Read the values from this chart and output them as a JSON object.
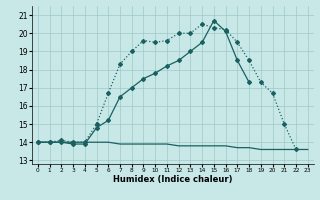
{
  "xlabel": "Humidex (Indice chaleur)",
  "background_color": "#c8e8e8",
  "grid_color": "#a0c8c8",
  "line_color": "#1a6060",
  "xlim": [
    -0.5,
    23.5
  ],
  "ylim": [
    12.8,
    21.5
  ],
  "xticks": [
    0,
    1,
    2,
    3,
    4,
    5,
    6,
    7,
    8,
    9,
    10,
    11,
    12,
    13,
    14,
    15,
    16,
    17,
    18,
    19,
    20,
    21,
    22,
    23
  ],
  "yticks": [
    13,
    14,
    15,
    16,
    17,
    18,
    19,
    20,
    21
  ],
  "line1_x": [
    0,
    1,
    2,
    3,
    4,
    5,
    6,
    7,
    8,
    9,
    10,
    11,
    12,
    13,
    14,
    15,
    16,
    17,
    18,
    19,
    20,
    21,
    22
  ],
  "line1_y": [
    14.0,
    14.0,
    14.1,
    14.0,
    14.0,
    15.0,
    16.7,
    18.3,
    19.0,
    19.6,
    19.5,
    19.6,
    20.0,
    20.0,
    20.5,
    20.3,
    20.2,
    19.5,
    18.5,
    17.3,
    16.7,
    15.0,
    13.6
  ],
  "line2_x": [
    0,
    1,
    2,
    3,
    4,
    5,
    6,
    7,
    8,
    9,
    10,
    11,
    12,
    13,
    14,
    15,
    16,
    17,
    18
  ],
  "line2_y": [
    14.0,
    14.0,
    14.0,
    13.9,
    13.9,
    14.8,
    15.2,
    16.5,
    17.0,
    17.5,
    17.8,
    18.2,
    18.5,
    19.0,
    19.5,
    20.7,
    20.1,
    18.5,
    17.3
  ],
  "line3_x": [
    0,
    1,
    2,
    3,
    4,
    5,
    6,
    7,
    8,
    9,
    10,
    11,
    12,
    13,
    14,
    15,
    16,
    17,
    18,
    19,
    20,
    21,
    22,
    23
  ],
  "line3_y": [
    14.0,
    14.0,
    14.0,
    14.0,
    14.0,
    14.0,
    14.0,
    13.9,
    13.9,
    13.9,
    13.9,
    13.9,
    13.8,
    13.8,
    13.8,
    13.8,
    13.8,
    13.7,
    13.7,
    13.6,
    13.6,
    13.6,
    13.6,
    13.6
  ]
}
